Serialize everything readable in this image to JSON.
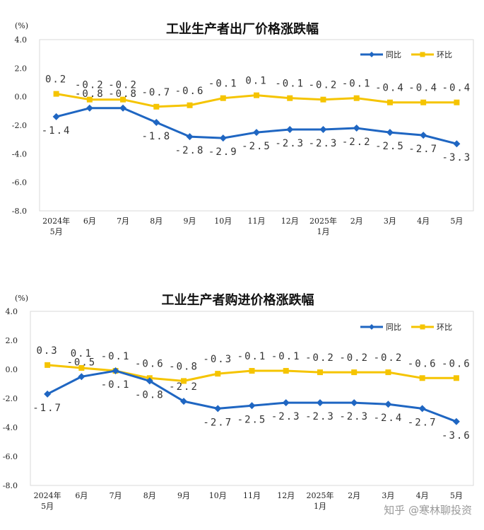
{
  "watermark": "知乎 @寒林聊投资",
  "colors": {
    "yoy": "#1f66c2",
    "mom": "#f5c400"
  },
  "chart_data": [
    {
      "type": "line",
      "title": "工业生产者出厂价格涨跌幅",
      "unit_label": "(%)",
      "categories": [
        "2024年\n5月",
        "6月",
        "7月",
        "8月",
        "9月",
        "10月",
        "11月",
        "12月",
        "2025年\n1月",
        "2月",
        "3月",
        "4月",
        "5月"
      ],
      "ylim": [
        -8.0,
        4.0
      ],
      "yticks": [
        "4.0",
        "2.0",
        "0.0",
        "-2.0",
        "-4.0",
        "-6.0",
        "-8.0"
      ],
      "ytick_values": [
        4,
        2,
        0,
        -2,
        -4,
        -6,
        -8
      ],
      "legend_position": "top-right",
      "series": [
        {
          "name": "同比",
          "key": "yoy",
          "values": [
            -1.4,
            -0.8,
            -0.8,
            -1.8,
            -2.8,
            -2.9,
            -2.5,
            -2.3,
            -2.3,
            -2.2,
            -2.5,
            -2.7,
            -3.3
          ],
          "labels": [
            "-1.4",
            "-0.8",
            "-0.8",
            "-1.8",
            "-2.8",
            "-2.9",
            "-2.5",
            "-2.3",
            "-2.3",
            "-2.2",
            "-2.5",
            "-2.7",
            "-3.3"
          ]
        },
        {
          "name": "环比",
          "key": "mom",
          "values": [
            0.2,
            -0.2,
            -0.2,
            -0.7,
            -0.6,
            -0.1,
            0.1,
            -0.1,
            -0.2,
            -0.1,
            -0.4,
            -0.4,
            -0.4
          ],
          "labels": [
            "0.2",
            "-0.2",
            "-0.2",
            "-0.7",
            "-0.6",
            "-0.1",
            "0.1",
            "-0.1",
            "-0.2",
            "-0.1",
            "-0.4",
            "-0.4",
            "-0.4"
          ]
        }
      ]
    },
    {
      "type": "line",
      "title": "工业生产者购进价格涨跌幅",
      "unit_label": "(%)",
      "categories": [
        "2024年\n5月",
        "6月",
        "7月",
        "8月",
        "9月",
        "10月",
        "11月",
        "12月",
        "2025年\n1月",
        "2月",
        "3月",
        "4月",
        "5月"
      ],
      "ylim": [
        -8.0,
        4.0
      ],
      "yticks": [
        "4.0",
        "2.0",
        "0.0",
        "-2.0",
        "-4.0",
        "-6.0",
        "-8.0"
      ],
      "ytick_values": [
        4,
        2,
        0,
        -2,
        -4,
        -6,
        -8
      ],
      "legend_position": "top-right",
      "series": [
        {
          "name": "同比",
          "key": "yoy",
          "values": [
            -1.7,
            -0.5,
            -0.1,
            -0.8,
            -2.2,
            -2.7,
            -2.5,
            -2.3,
            -2.3,
            -2.3,
            -2.4,
            -2.7,
            -3.6
          ],
          "labels": [
            "-1.7",
            "-0.5",
            "-0.1",
            "-0.8",
            "-2.2",
            "-2.7",
            "-2.5",
            "-2.3",
            "-2.3",
            "-2.3",
            "-2.4",
            "-2.7",
            "-3.6"
          ]
        },
        {
          "name": "环比",
          "key": "mom",
          "values": [
            0.3,
            0.1,
            -0.1,
            -0.6,
            -0.8,
            -0.3,
            -0.1,
            -0.1,
            -0.2,
            -0.2,
            -0.2,
            -0.6,
            -0.6
          ],
          "labels": [
            "0.3",
            "0.1",
            "-0.1",
            "-0.6",
            "-0.8",
            "-0.3",
            "-0.1",
            "-0.1",
            "-0.2",
            "-0.2",
            "-0.2",
            "-0.6",
            "-0.6"
          ]
        }
      ]
    }
  ]
}
